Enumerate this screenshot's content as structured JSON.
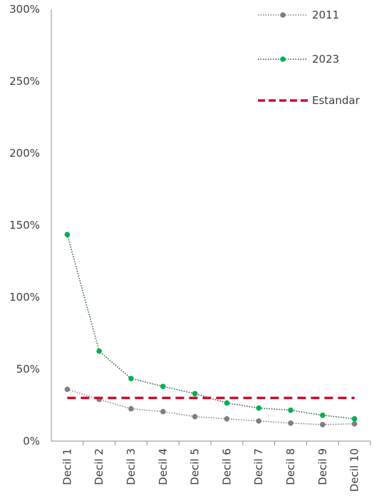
{
  "chart_data": {
    "type": "line",
    "title": "",
    "xlabel": "",
    "ylabel": "",
    "categories": [
      "Decil 1",
      "Decil 2",
      "Decil 3",
      "Decil 4",
      "Decil 5",
      "Decil 6",
      "Decil 7",
      "Decil 8",
      "Decil 9",
      "Decil 10"
    ],
    "ylim": [
      0,
      300
    ],
    "yticks": [
      0,
      50,
      100,
      150,
      200,
      250,
      300
    ],
    "ytick_labels": [
      "0%",
      "50%",
      "100%",
      "150%",
      "200%",
      "250%",
      "300%"
    ],
    "grid": false,
    "legend": "top-right",
    "series": [
      {
        "name": "2011",
        "color": "#7f7f7f",
        "style": "dotted",
        "marker": "circle",
        "values": [
          36,
          29,
          22.5,
          20.5,
          17,
          15.5,
          14,
          12.5,
          11.5,
          12
        ]
      },
      {
        "name": "2023",
        "color": "#00b050",
        "line_color": "#1e5631",
        "style": "dotted",
        "marker": "circle",
        "values": [
          143.5,
          62.5,
          43.5,
          38,
          33,
          26.5,
          23,
          21.5,
          18,
          15.5
        ]
      },
      {
        "name": "Estandar",
        "color": "#c8102e",
        "style": "dashed",
        "marker": "none",
        "values": [
          30,
          30,
          30,
          30,
          30,
          30,
          30,
          30,
          30,
          30
        ]
      }
    ]
  }
}
